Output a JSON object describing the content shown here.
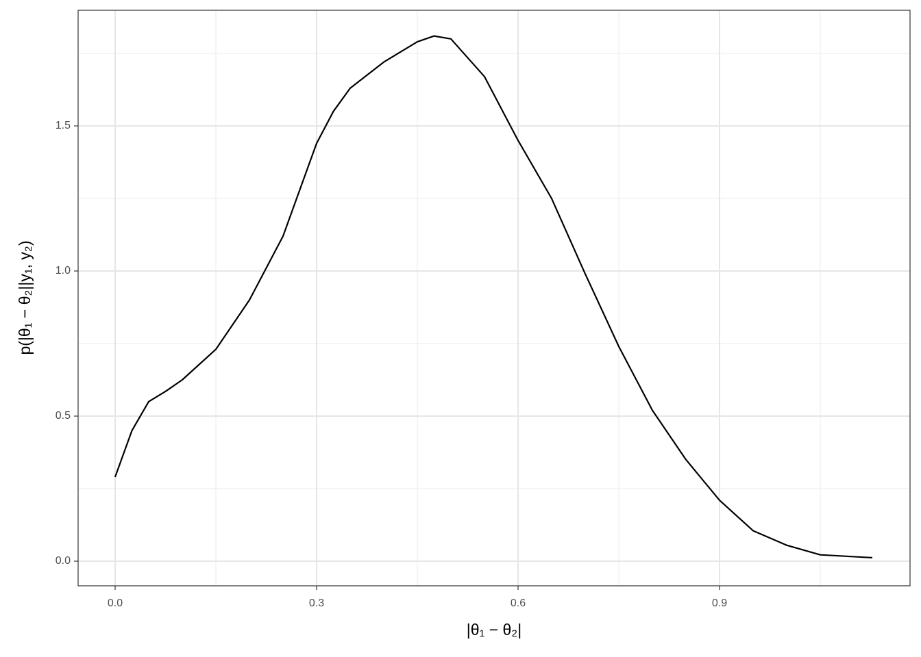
{
  "chart_data": {
    "type": "line",
    "x_label": "|θ₁ − θ₂|",
    "y_label": "p(|θ₁ − θ₂||y₁, y₂)",
    "x": [
      0,
      0.025,
      0.05,
      0.075,
      0.1,
      0.15,
      0.2,
      0.25,
      0.3,
      0.325,
      0.35,
      0.4,
      0.45,
      0.475,
      0.5,
      0.55,
      0.6,
      0.65,
      0.7,
      0.75,
      0.8,
      0.85,
      0.9,
      0.95,
      1.0,
      1.05,
      1.1275
    ],
    "values": [
      0.29,
      0.45,
      0.55,
      0.585,
      0.625,
      0.73,
      0.9,
      1.12,
      1.44,
      1.55,
      1.63,
      1.72,
      1.79,
      1.81,
      1.8,
      1.67,
      1.45,
      1.25,
      0.99,
      0.74,
      0.52,
      0.35,
      0.21,
      0.105,
      0.055,
      0.022,
      0.012
    ],
    "color": "#000000",
    "xlim": [
      -0.0551,
      1.1837
    ],
    "ylim": [
      -0.0849,
      1.8986
    ],
    "xticks": [
      {
        "value": 0,
        "label": "0.0"
      },
      0.3,
      0.6,
      0.9
    ],
    "yticks": [
      {
        "value": 0,
        "label": "0.0"
      },
      0.5,
      {
        "value": 1,
        "label": "1.0"
      },
      1.5
    ],
    "xminor": [
      0.15,
      0.45,
      0.75,
      1.05
    ],
    "yminor": [
      0.25,
      0.75,
      1.25,
      1.75
    ],
    "grid": true
  }
}
